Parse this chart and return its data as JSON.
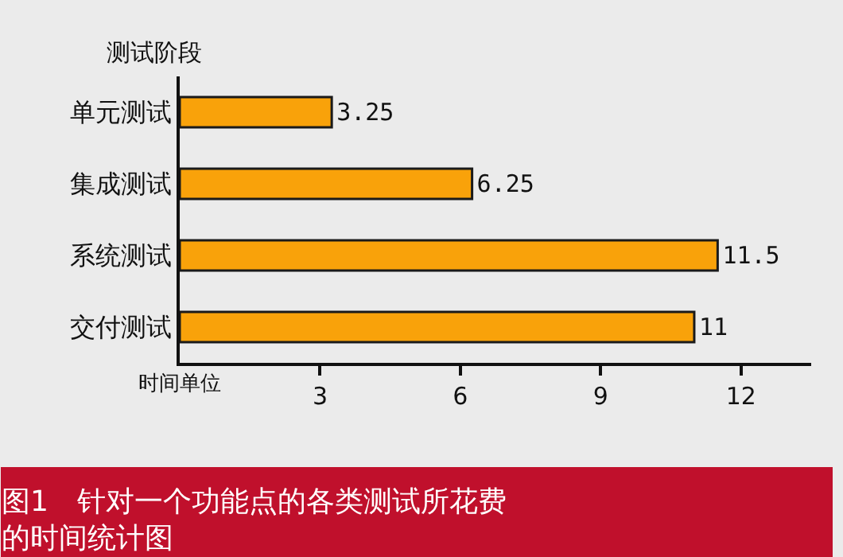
{
  "chart_data": {
    "type": "bar",
    "orientation": "horizontal",
    "categories": [
      "单元测试",
      "集成测试",
      "系统测试",
      "交付测试"
    ],
    "values": [
      3.25,
      6.25,
      11.5,
      11
    ],
    "color": "#f9a20a",
    "xlabel": "时间单位",
    "ylabel": "测试阶段",
    "xlim": [
      0,
      13.5
    ],
    "xticks": [
      3,
      6,
      9,
      12
    ],
    "data_labels": true,
    "grid": false,
    "legend": false,
    "annotations": [
      "图1　针对一个功能点的各类测试所花费的时间统计图"
    ]
  }
}
